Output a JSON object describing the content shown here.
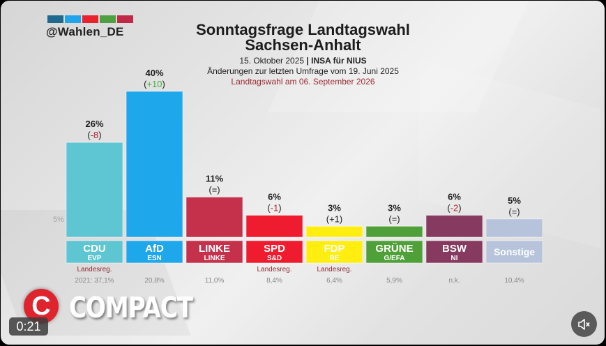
{
  "header": {
    "handle": "@Wahlen_DE",
    "logo_colors": [
      "#1f6a8c",
      "#22a4e8",
      "#e8222e",
      "#4fa043",
      "#c02a48"
    ],
    "title_line1": "Sonntagsfrage Landtagswahl",
    "title_line2": "Sachsen-Anhalt",
    "date": "15. Oktober 2025",
    "separator": "|",
    "institute": "INSA für NIUS",
    "changes_note": "Änderungen zur letzten Umfrage vom 19. Juni 2025",
    "election_note": "Landtagswahl am 06. September 2026"
  },
  "chart_data": {
    "type": "bar",
    "title": "Sonntagsfrage Landtagswahl Sachsen-Anhalt",
    "subtitle": "15. Oktober 2025 | INSA für NIUS",
    "xlabel": "",
    "ylabel": "",
    "threshold_label": "5%",
    "threshold": 5,
    "ylim": [
      0,
      40
    ],
    "categories": [
      "CDU",
      "AfD",
      "LINKE",
      "SPD",
      "FDP",
      "GRÜNE",
      "BSW",
      "Sonstige"
    ],
    "values": [
      26,
      40,
      11,
      6,
      3,
      3,
      6,
      5
    ],
    "value_labels": [
      "26%",
      "40%",
      "11%",
      "6%",
      "3%",
      "3%",
      "6%",
      "5%"
    ],
    "changes": [
      "-8",
      "+10",
      "=",
      "-1",
      "+1",
      "=",
      "-2",
      "="
    ],
    "change_colors": [
      "#b0202e",
      "#3fae3f",
      "#1d1d1d",
      "#b0202e",
      "#1d1d1d",
      "#1d1d1d",
      "#b0202e",
      "#1d1d1d"
    ],
    "eu_groups": [
      "EVP",
      "ESN",
      "LINKE",
      "S&D",
      "RE",
      "G/EFA",
      "NI",
      ""
    ],
    "colors": [
      "#5dc6d2",
      "#1fa7ec",
      "#c5304b",
      "#ee1c2e",
      "#ffee10",
      "#4fa038",
      "#873a60",
      "#b6c3db"
    ],
    "label_text_colors": [
      "#ffffff",
      "#ffffff",
      "#ffffff",
      "#ffffff",
      "#111111",
      "#ffffff",
      "#ffffff",
      "#ffffff"
    ],
    "government": [
      "Landesreg.",
      "",
      "",
      "Landesreg.",
      "Landesreg.",
      "",
      "",
      ""
    ],
    "previous_election": [
      "2021: 37,1%",
      "20,8%",
      "11,0%",
      "8,4%",
      "6,4%",
      "5,9%",
      "n.k.",
      "10,4%"
    ]
  },
  "overlay": {
    "brand_initial": "C",
    "brand_name": "COMPACT",
    "timestamp": "0:21",
    "mute_icon": "speaker-muted-icon"
  }
}
